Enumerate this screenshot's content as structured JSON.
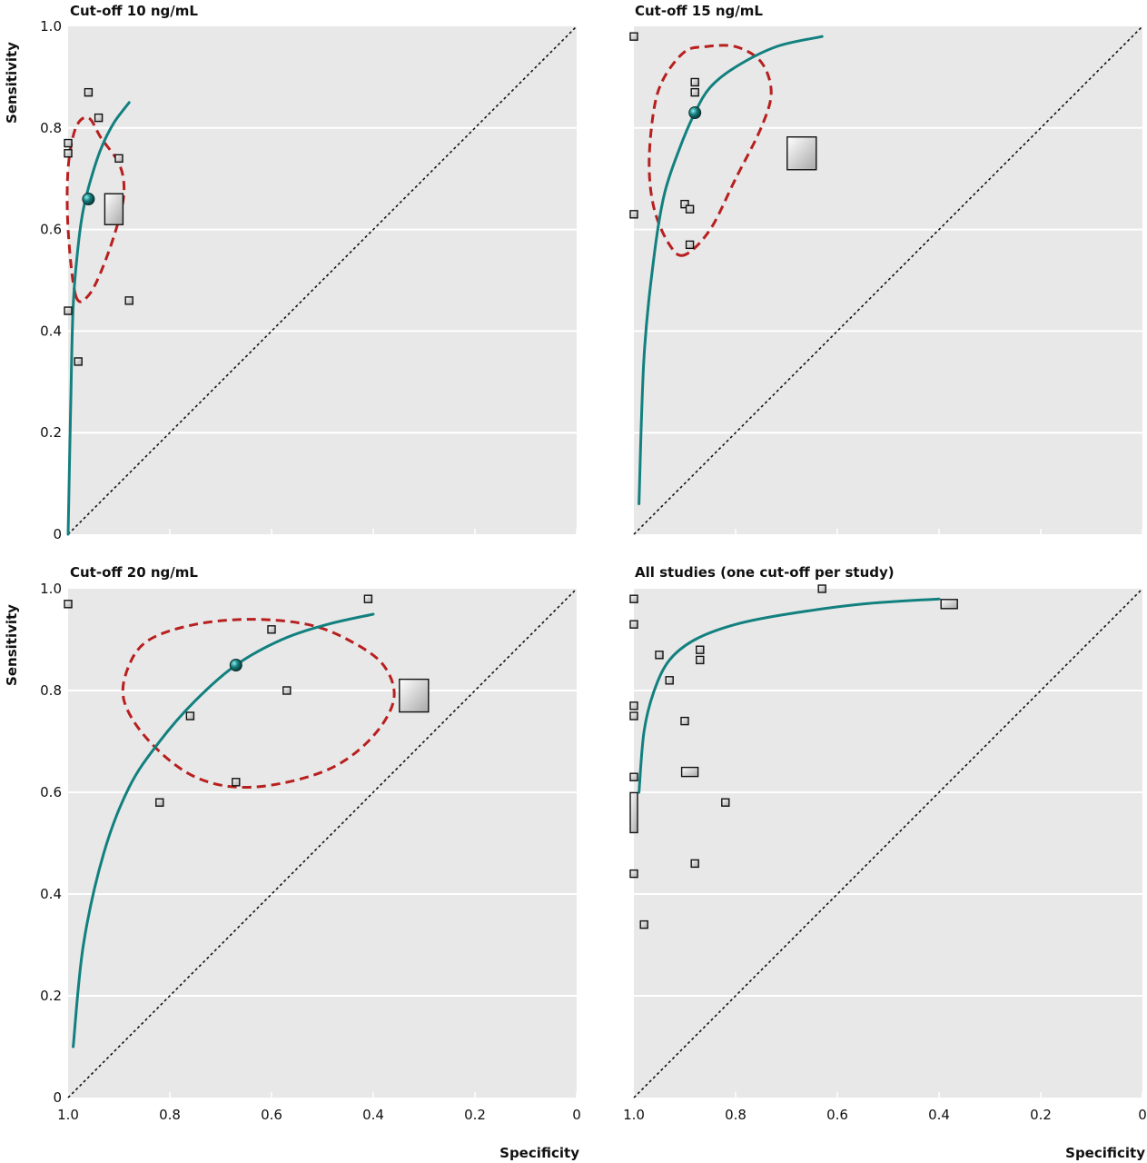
{
  "chart_data": [
    {
      "type": "scatter",
      "title": "Cut-off 10 ng/mL",
      "xlabel": "",
      "ylabel": "Sensitivity",
      "x_reversed": true,
      "xlim": [
        1.0,
        0
      ],
      "ylim": [
        0,
        1.0
      ],
      "xticks": [
        1.0,
        0.8,
        0.6,
        0.4,
        0.2,
        0
      ],
      "yticks": [
        0,
        0.2,
        0.4,
        0.6,
        0.8,
        1.0
      ],
      "show_x_tick_labels": false,
      "show_y_tick_labels": true,
      "grid": "horizontal",
      "studies": [
        {
          "specificity": 0.96,
          "sensitivity": 0.87,
          "weight": "small"
        },
        {
          "specificity": 0.94,
          "sensitivity": 0.82,
          "weight": "small"
        },
        {
          "specificity": 1.0,
          "sensitivity": 0.77,
          "weight": "small"
        },
        {
          "specificity": 1.0,
          "sensitivity": 0.75,
          "weight": "small"
        },
        {
          "specificity": 0.9,
          "sensitivity": 0.74,
          "weight": "small"
        },
        {
          "specificity": 0.91,
          "sensitivity": 0.64,
          "weight": "large"
        },
        {
          "specificity": 0.88,
          "sensitivity": 0.46,
          "weight": "small"
        },
        {
          "specificity": 1.0,
          "sensitivity": 0.44,
          "weight": "small"
        },
        {
          "specificity": 0.98,
          "sensitivity": 0.34,
          "weight": "small"
        }
      ],
      "summary_point": {
        "specificity": 0.96,
        "sensitivity": 0.66
      },
      "sroc_curve": [
        [
          1.0,
          0.0
        ],
        [
          0.995,
          0.25
        ],
        [
          0.99,
          0.45
        ],
        [
          0.98,
          0.57
        ],
        [
          0.97,
          0.64
        ],
        [
          0.955,
          0.7
        ],
        [
          0.935,
          0.76
        ],
        [
          0.91,
          0.81
        ],
        [
          0.88,
          0.85
        ]
      ],
      "confidence_region": [
        [
          0.985,
          0.47
        ],
        [
          0.96,
          0.47
        ],
        [
          0.93,
          0.53
        ],
        [
          0.9,
          0.62
        ],
        [
          0.89,
          0.68
        ],
        [
          0.9,
          0.73
        ],
        [
          0.935,
          0.78
        ],
        [
          0.96,
          0.82
        ],
        [
          0.985,
          0.8
        ],
        [
          1.0,
          0.72
        ],
        [
          1.0,
          0.6
        ]
      ]
    },
    {
      "type": "scatter",
      "title": "Cut-off 15 ng/mL",
      "xlabel": "",
      "ylabel": "",
      "x_reversed": true,
      "xlim": [
        1.0,
        0
      ],
      "ylim": [
        0,
        1.0
      ],
      "xticks": [
        1.0,
        0.8,
        0.6,
        0.4,
        0.2,
        0
      ],
      "yticks": [
        0,
        0.2,
        0.4,
        0.6,
        0.8,
        1.0
      ],
      "show_x_tick_labels": false,
      "show_y_tick_labels": false,
      "grid": "horizontal",
      "studies": [
        {
          "specificity": 1.0,
          "sensitivity": 0.98,
          "weight": "small"
        },
        {
          "specificity": 0.88,
          "sensitivity": 0.89,
          "weight": "small"
        },
        {
          "specificity": 0.88,
          "sensitivity": 0.87,
          "weight": "small"
        },
        {
          "specificity": 0.67,
          "sensitivity": 0.75,
          "weight": "large"
        },
        {
          "specificity": 0.9,
          "sensitivity": 0.65,
          "weight": "small"
        },
        {
          "specificity": 0.89,
          "sensitivity": 0.64,
          "weight": "small"
        },
        {
          "specificity": 1.0,
          "sensitivity": 0.63,
          "weight": "small"
        },
        {
          "specificity": 0.89,
          "sensitivity": 0.57,
          "weight": "small"
        }
      ],
      "summary_point": {
        "specificity": 0.88,
        "sensitivity": 0.83
      },
      "sroc_curve": [
        [
          0.99,
          0.06
        ],
        [
          0.98,
          0.35
        ],
        [
          0.96,
          0.55
        ],
        [
          0.94,
          0.67
        ],
        [
          0.91,
          0.76
        ],
        [
          0.88,
          0.83
        ],
        [
          0.85,
          0.88
        ],
        [
          0.8,
          0.92
        ],
        [
          0.72,
          0.96
        ],
        [
          0.63,
          0.98
        ]
      ],
      "confidence_region": [
        [
          0.9,
          0.55
        ],
        [
          0.93,
          0.57
        ],
        [
          0.96,
          0.64
        ],
        [
          0.97,
          0.73
        ],
        [
          0.96,
          0.84
        ],
        [
          0.94,
          0.9
        ],
        [
          0.9,
          0.95
        ],
        [
          0.86,
          0.96
        ],
        [
          0.8,
          0.96
        ],
        [
          0.75,
          0.93
        ],
        [
          0.73,
          0.87
        ],
        [
          0.75,
          0.8
        ],
        [
          0.8,
          0.7
        ],
        [
          0.85,
          0.6
        ]
      ]
    },
    {
      "type": "scatter",
      "title": "Cut-off 20 ng/mL",
      "xlabel": "",
      "ylabel": "Sensitivity",
      "x_reversed": true,
      "xlim": [
        1.0,
        0
      ],
      "ylim": [
        0,
        1.0
      ],
      "xticks": [
        1.0,
        0.8,
        0.6,
        0.4,
        0.2,
        0
      ],
      "yticks": [
        0,
        0.2,
        0.4,
        0.6,
        0.8,
        1.0
      ],
      "show_x_tick_labels": true,
      "show_y_tick_labels": true,
      "grid": "horizontal",
      "studies": [
        {
          "specificity": 1.0,
          "sensitivity": 0.97,
          "weight": "small"
        },
        {
          "specificity": 0.41,
          "sensitivity": 0.98,
          "weight": "small"
        },
        {
          "specificity": 0.6,
          "sensitivity": 0.92,
          "weight": "small"
        },
        {
          "specificity": 0.57,
          "sensitivity": 0.8,
          "weight": "small"
        },
        {
          "specificity": 0.32,
          "sensitivity": 0.79,
          "weight": "large"
        },
        {
          "specificity": 0.76,
          "sensitivity": 0.75,
          "weight": "small"
        },
        {
          "specificity": 0.67,
          "sensitivity": 0.62,
          "weight": "small"
        },
        {
          "specificity": 0.82,
          "sensitivity": 0.58,
          "weight": "small"
        }
      ],
      "summary_point": {
        "specificity": 0.67,
        "sensitivity": 0.85
      },
      "sroc_curve": [
        [
          0.99,
          0.1
        ],
        [
          0.97,
          0.3
        ],
        [
          0.93,
          0.48
        ],
        [
          0.88,
          0.61
        ],
        [
          0.82,
          0.7
        ],
        [
          0.75,
          0.78
        ],
        [
          0.67,
          0.85
        ],
        [
          0.58,
          0.9
        ],
        [
          0.49,
          0.93
        ],
        [
          0.4,
          0.95
        ]
      ],
      "confidence_region": [
        [
          0.64,
          0.61
        ],
        [
          0.75,
          0.63
        ],
        [
          0.84,
          0.7
        ],
        [
          0.89,
          0.78
        ],
        [
          0.88,
          0.85
        ],
        [
          0.84,
          0.9
        ],
        [
          0.75,
          0.93
        ],
        [
          0.64,
          0.94
        ],
        [
          0.53,
          0.93
        ],
        [
          0.45,
          0.9
        ],
        [
          0.38,
          0.85
        ],
        [
          0.36,
          0.78
        ],
        [
          0.41,
          0.7
        ],
        [
          0.5,
          0.64
        ]
      ]
    },
    {
      "type": "scatter",
      "title": "All studies (one cut-off per study)",
      "xlabel": "Specificity",
      "ylabel": "",
      "x_reversed": true,
      "xlim": [
        1.0,
        0
      ],
      "ylim": [
        0,
        1.0
      ],
      "xticks": [
        1.0,
        0.8,
        0.6,
        0.4,
        0.2,
        0
      ],
      "yticks": [
        0,
        0.2,
        0.4,
        0.6,
        0.8,
        1.0
      ],
      "show_x_tick_labels": true,
      "show_y_tick_labels": false,
      "grid": "horizontal",
      "studies": [
        {
          "specificity": 0.63,
          "sensitivity": 1.0,
          "weight": "small"
        },
        {
          "specificity": 1.0,
          "sensitivity": 0.98,
          "weight": "small"
        },
        {
          "specificity": 0.38,
          "sensitivity": 0.97,
          "weight": "wide"
        },
        {
          "specificity": 1.0,
          "sensitivity": 0.93,
          "weight": "small"
        },
        {
          "specificity": 0.87,
          "sensitivity": 0.88,
          "weight": "small"
        },
        {
          "specificity": 0.87,
          "sensitivity": 0.86,
          "weight": "small"
        },
        {
          "specificity": 0.95,
          "sensitivity": 0.87,
          "weight": "small"
        },
        {
          "specificity": 0.93,
          "sensitivity": 0.82,
          "weight": "small"
        },
        {
          "specificity": 1.0,
          "sensitivity": 0.77,
          "weight": "small"
        },
        {
          "specificity": 1.0,
          "sensitivity": 0.75,
          "weight": "small"
        },
        {
          "specificity": 0.9,
          "sensitivity": 0.74,
          "weight": "small"
        },
        {
          "specificity": 0.89,
          "sensitivity": 0.64,
          "weight": "wide"
        },
        {
          "specificity": 1.0,
          "sensitivity": 0.63,
          "weight": "small"
        },
        {
          "specificity": 0.82,
          "sensitivity": 0.58,
          "weight": "small"
        },
        {
          "specificity": 1.0,
          "sensitivity": 0.56,
          "weight": "tall"
        },
        {
          "specificity": 0.88,
          "sensitivity": 0.46,
          "weight": "small"
        },
        {
          "specificity": 1.0,
          "sensitivity": 0.44,
          "weight": "small"
        },
        {
          "specificity": 0.98,
          "sensitivity": 0.34,
          "weight": "small"
        }
      ],
      "summary_point": null,
      "sroc_curve": [
        [
          0.99,
          0.6
        ],
        [
          0.98,
          0.72
        ],
        [
          0.96,
          0.8
        ],
        [
          0.93,
          0.86
        ],
        [
          0.88,
          0.9
        ],
        [
          0.8,
          0.93
        ],
        [
          0.7,
          0.95
        ],
        [
          0.55,
          0.97
        ],
        [
          0.4,
          0.98
        ]
      ],
      "confidence_region": null
    }
  ],
  "colors": {
    "panel_background": "#e8e8e8",
    "gridline": "#ffffff",
    "sroc_curve": "#12807f",
    "confidence_region": "#b81f1f",
    "diagonal": "#111111",
    "study_marker_border": "#111111",
    "summary_point": "#0d4d4e"
  }
}
